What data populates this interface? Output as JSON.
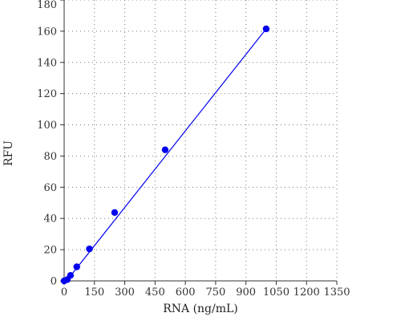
{
  "chart_data": {
    "type": "scatter",
    "title": "",
    "xlabel": "RNA (ng/mL)",
    "ylabel": "RFU",
    "xlim": [
      0,
      1350
    ],
    "ylim": [
      0,
      180
    ],
    "x_ticks": [
      0,
      150,
      300,
      450,
      600,
      750,
      900,
      1050,
      1200,
      1350
    ],
    "y_ticks": [
      0,
      20,
      40,
      60,
      80,
      100,
      120,
      140,
      160,
      180
    ],
    "grid": true,
    "series": [
      {
        "x": [
          0,
          15.6,
          31.3,
          62.5,
          125,
          250,
          500,
          1000
        ],
        "y": [
          0,
          0.8,
          3.5,
          9,
          20.5,
          43.8,
          84,
          161.5
        ],
        "fit_line": {
          "x": [
            15,
            1000
          ],
          "y": [
            0.5,
            161.5
          ]
        },
        "color": "#0000ee"
      }
    ]
  }
}
